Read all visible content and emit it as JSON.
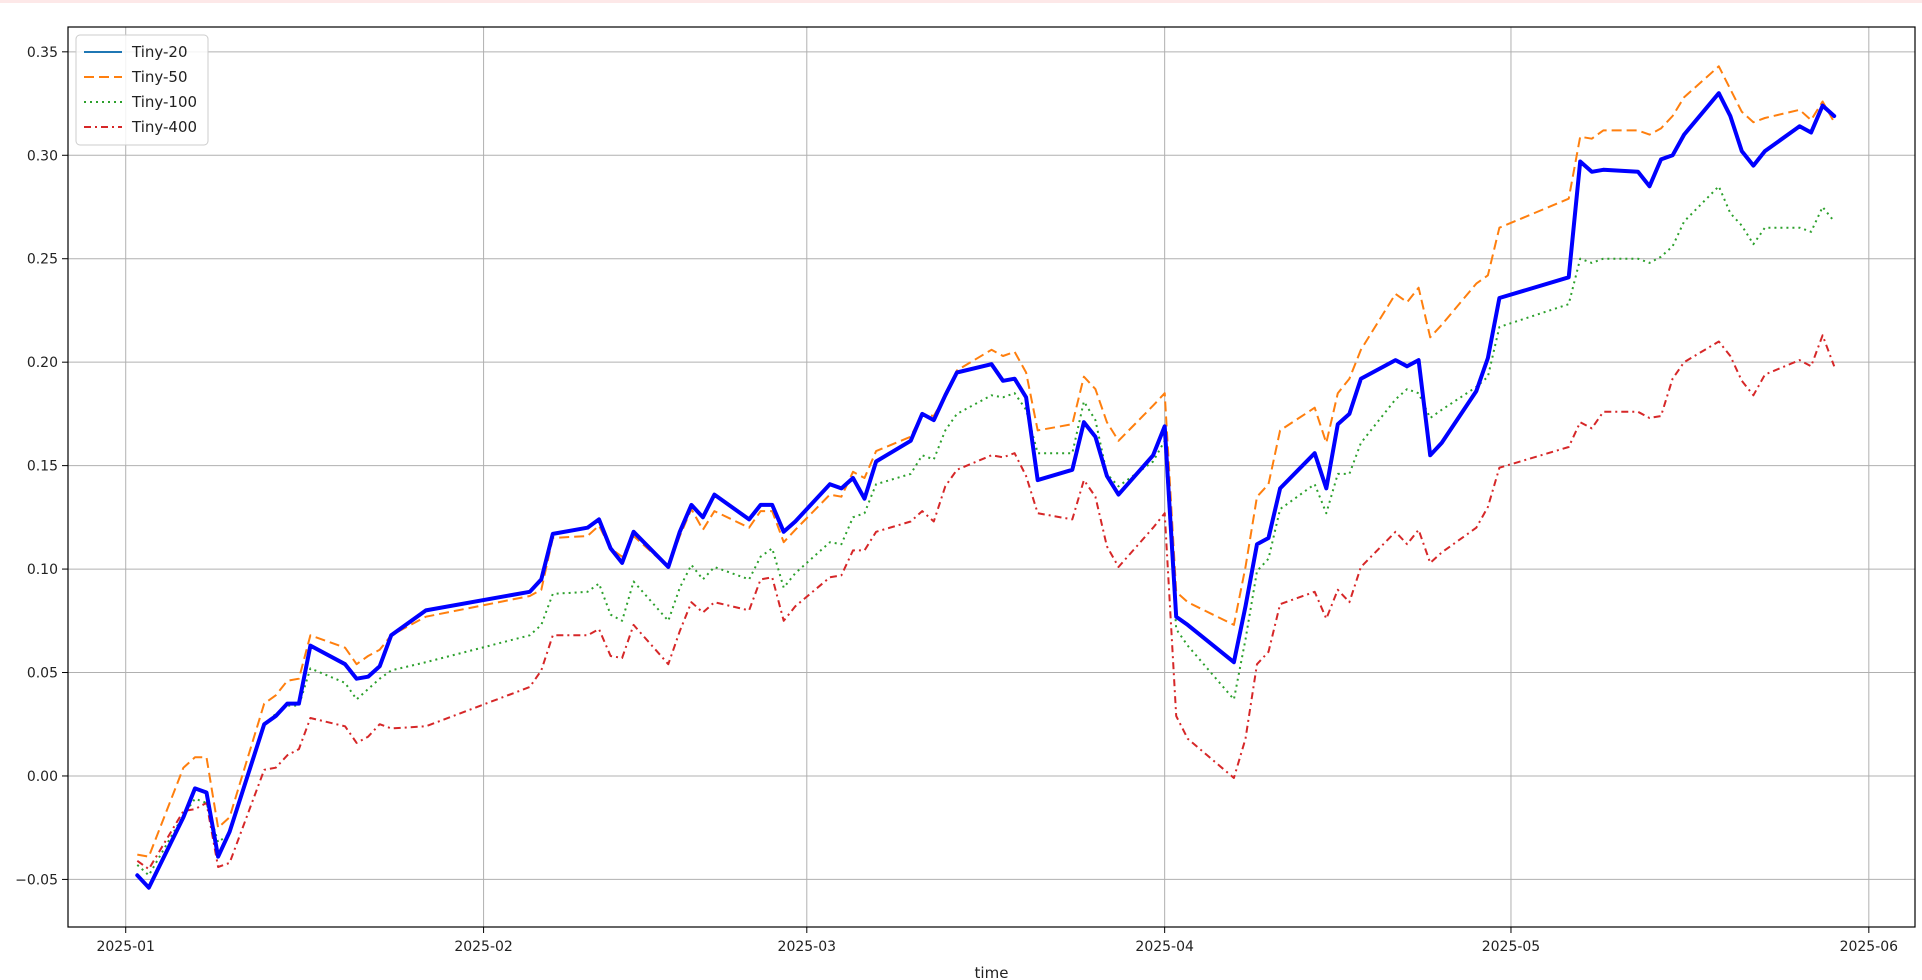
{
  "chart_data": {
    "type": "line",
    "title": "",
    "xlabel": "time",
    "ylabel": "",
    "x_type": "date",
    "xlim": [
      "2024-12-27",
      "2025-06-05"
    ],
    "ylim": [
      -0.073,
      0.362
    ],
    "xticks": [
      {
        "value": "2025-01-01",
        "label": "2025-01"
      },
      {
        "value": "2025-02-01",
        "label": "2025-02"
      },
      {
        "value": "2025-03-01",
        "label": "2025-03"
      },
      {
        "value": "2025-04-01",
        "label": "2025-04"
      },
      {
        "value": "2025-05-01",
        "label": "2025-05"
      },
      {
        "value": "2025-06-01",
        "label": "2025-06"
      }
    ],
    "yticks": [
      {
        "value": -0.05,
        "label": "−0.05"
      },
      {
        "value": 0.0,
        "label": "0.00"
      },
      {
        "value": 0.05,
        "label": "0.05"
      },
      {
        "value": 0.1,
        "label": "0.10"
      },
      {
        "value": 0.15,
        "label": "0.15"
      },
      {
        "value": 0.2,
        "label": "0.20"
      },
      {
        "value": 0.25,
        "label": "0.25"
      },
      {
        "value": 0.3,
        "label": "0.30"
      },
      {
        "value": 0.35,
        "label": "0.35"
      }
    ],
    "grid": true,
    "legend": "top-left",
    "x": [
      "2025-01-02",
      "2025-01-03",
      "2025-01-06",
      "2025-01-07",
      "2025-01-08",
      "2025-01-09",
      "2025-01-10",
      "2025-01-13",
      "2025-01-14",
      "2025-01-15",
      "2025-01-16",
      "2025-01-17",
      "2025-01-20",
      "2025-01-21",
      "2025-01-22",
      "2025-01-23",
      "2025-01-24",
      "2025-01-27",
      "2025-02-05",
      "2025-02-06",
      "2025-02-07",
      "2025-02-10",
      "2025-02-11",
      "2025-02-12",
      "2025-02-13",
      "2025-02-14",
      "2025-02-17",
      "2025-02-18",
      "2025-02-19",
      "2025-02-20",
      "2025-02-21",
      "2025-02-24",
      "2025-02-25",
      "2025-02-26",
      "2025-02-27",
      "2025-02-28",
      "2025-03-03",
      "2025-03-04",
      "2025-03-05",
      "2025-03-06",
      "2025-03-07",
      "2025-03-10",
      "2025-03-11",
      "2025-03-12",
      "2025-03-13",
      "2025-03-14",
      "2025-03-17",
      "2025-03-18",
      "2025-03-19",
      "2025-03-20",
      "2025-03-21",
      "2025-03-24",
      "2025-03-25",
      "2025-03-26",
      "2025-03-27",
      "2025-03-28",
      "2025-03-31",
      "2025-04-01",
      "2025-04-02",
      "2025-04-03",
      "2025-04-07",
      "2025-04-08",
      "2025-04-09",
      "2025-04-10",
      "2025-04-11",
      "2025-04-14",
      "2025-04-15",
      "2025-04-16",
      "2025-04-17",
      "2025-04-18",
      "2025-04-21",
      "2025-04-22",
      "2025-04-23",
      "2025-04-24",
      "2025-04-25",
      "2025-04-28",
      "2025-04-29",
      "2025-04-30",
      "2025-05-06",
      "2025-05-07",
      "2025-05-08",
      "2025-05-09",
      "2025-05-12",
      "2025-05-13",
      "2025-05-14",
      "2025-05-15",
      "2025-05-16",
      "2025-05-19",
      "2025-05-20",
      "2025-05-21",
      "2025-05-22",
      "2025-05-23",
      "2025-05-26",
      "2025-05-27",
      "2025-05-28",
      "2025-05-29"
    ],
    "series": [
      {
        "name": "Tiny-20",
        "color": "#0000ff",
        "legend_color": "#1f77b4",
        "style": "solid",
        "values": [
          -0.048,
          -0.054,
          -0.02,
          -0.006,
          -0.008,
          -0.039,
          -0.027,
          0.025,
          0.029,
          0.035,
          0.035,
          0.063,
          0.054,
          0.047,
          0.048,
          0.053,
          0.068,
          0.08,
          0.089,
          0.095,
          0.117,
          0.12,
          0.124,
          0.11,
          0.103,
          0.118,
          0.101,
          0.118,
          0.131,
          0.125,
          0.136,
          0.124,
          0.131,
          0.131,
          0.118,
          0.123,
          0.141,
          0.139,
          0.144,
          0.134,
          0.152,
          0.162,
          0.175,
          0.172,
          0.184,
          0.195,
          0.199,
          0.191,
          0.192,
          0.183,
          0.143,
          0.148,
          0.171,
          0.164,
          0.145,
          0.136,
          0.155,
          0.169,
          0.077,
          0.073,
          0.055,
          0.082,
          0.112,
          0.115,
          0.139,
          0.156,
          0.139,
          0.17,
          0.175,
          0.192,
          0.201,
          0.198,
          0.201,
          0.155,
          0.161,
          0.186,
          0.202,
          0.231,
          0.241,
          0.297,
          0.292,
          0.293,
          0.292,
          0.285,
          0.298,
          0.3,
          0.31,
          0.33,
          0.319,
          0.302,
          0.295,
          0.302,
          0.314,
          0.311,
          0.324,
          0.319
        ]
      },
      {
        "name": "Tiny-50",
        "color": "#ff7f0e",
        "style": "dashed",
        "values": [
          -0.038,
          -0.039,
          0.004,
          0.009,
          0.009,
          -0.025,
          -0.02,
          0.035,
          0.039,
          0.046,
          0.047,
          0.068,
          0.062,
          0.054,
          0.058,
          0.061,
          0.068,
          0.077,
          0.087,
          0.09,
          0.115,
          0.116,
          0.121,
          0.11,
          0.106,
          0.116,
          0.101,
          0.116,
          0.129,
          0.119,
          0.128,
          0.12,
          0.128,
          0.128,
          0.113,
          0.119,
          0.136,
          0.135,
          0.147,
          0.144,
          0.157,
          0.164,
          0.175,
          0.174,
          0.184,
          0.196,
          0.206,
          0.203,
          0.205,
          0.195,
          0.167,
          0.17,
          0.193,
          0.187,
          0.171,
          0.162,
          0.179,
          0.185,
          0.089,
          0.084,
          0.073,
          0.101,
          0.135,
          0.141,
          0.167,
          0.178,
          0.161,
          0.185,
          0.192,
          0.206,
          0.233,
          0.229,
          0.236,
          0.212,
          0.218,
          0.238,
          0.242,
          0.265,
          0.279,
          0.309,
          0.308,
          0.312,
          0.312,
          0.31,
          0.313,
          0.319,
          0.328,
          0.343,
          0.332,
          0.321,
          0.316,
          0.318,
          0.322,
          0.317,
          0.326,
          0.316
        ]
      },
      {
        "name": "Tiny-100",
        "color": "#2ca02c",
        "style": "dotted",
        "values": [
          -0.043,
          -0.048,
          -0.019,
          -0.011,
          -0.013,
          -0.032,
          -0.028,
          0.025,
          0.03,
          0.034,
          0.034,
          0.052,
          0.045,
          0.037,
          0.042,
          0.047,
          0.051,
          0.055,
          0.068,
          0.073,
          0.088,
          0.089,
          0.093,
          0.078,
          0.075,
          0.094,
          0.075,
          0.091,
          0.102,
          0.095,
          0.101,
          0.095,
          0.106,
          0.11,
          0.091,
          0.098,
          0.113,
          0.112,
          0.125,
          0.127,
          0.141,
          0.146,
          0.155,
          0.153,
          0.167,
          0.175,
          0.184,
          0.183,
          0.185,
          0.177,
          0.156,
          0.156,
          0.181,
          0.172,
          0.146,
          0.14,
          0.152,
          0.162,
          0.071,
          0.063,
          0.037,
          0.066,
          0.099,
          0.105,
          0.129,
          0.141,
          0.127,
          0.146,
          0.146,
          0.161,
          0.182,
          0.187,
          0.185,
          0.173,
          0.177,
          0.188,
          0.193,
          0.217,
          0.228,
          0.25,
          0.248,
          0.25,
          0.25,
          0.248,
          0.251,
          0.256,
          0.268,
          0.285,
          0.272,
          0.266,
          0.257,
          0.265,
          0.265,
          0.263,
          0.275,
          0.268
        ]
      },
      {
        "name": "Tiny-400",
        "color": "#d62728",
        "style": "dashdot",
        "values": [
          -0.041,
          -0.045,
          -0.017,
          -0.016,
          -0.013,
          -0.044,
          -0.042,
          0.003,
          0.004,
          0.01,
          0.013,
          0.028,
          0.024,
          0.016,
          0.019,
          0.025,
          0.023,
          0.024,
          0.043,
          0.051,
          0.068,
          0.068,
          0.071,
          0.058,
          0.057,
          0.073,
          0.054,
          0.07,
          0.084,
          0.079,
          0.084,
          0.08,
          0.095,
          0.096,
          0.075,
          0.082,
          0.096,
          0.097,
          0.109,
          0.109,
          0.118,
          0.123,
          0.128,
          0.123,
          0.14,
          0.148,
          0.155,
          0.154,
          0.156,
          0.145,
          0.127,
          0.124,
          0.143,
          0.135,
          0.111,
          0.101,
          0.12,
          0.127,
          0.029,
          0.018,
          -0.001,
          0.018,
          0.054,
          0.06,
          0.083,
          0.089,
          0.076,
          0.09,
          0.084,
          0.101,
          0.118,
          0.112,
          0.119,
          0.103,
          0.108,
          0.12,
          0.13,
          0.149,
          0.159,
          0.171,
          0.168,
          0.176,
          0.176,
          0.173,
          0.174,
          0.192,
          0.2,
          0.21,
          0.203,
          0.191,
          0.184,
          0.194,
          0.201,
          0.198,
          0.213,
          0.198
        ]
      }
    ]
  }
}
